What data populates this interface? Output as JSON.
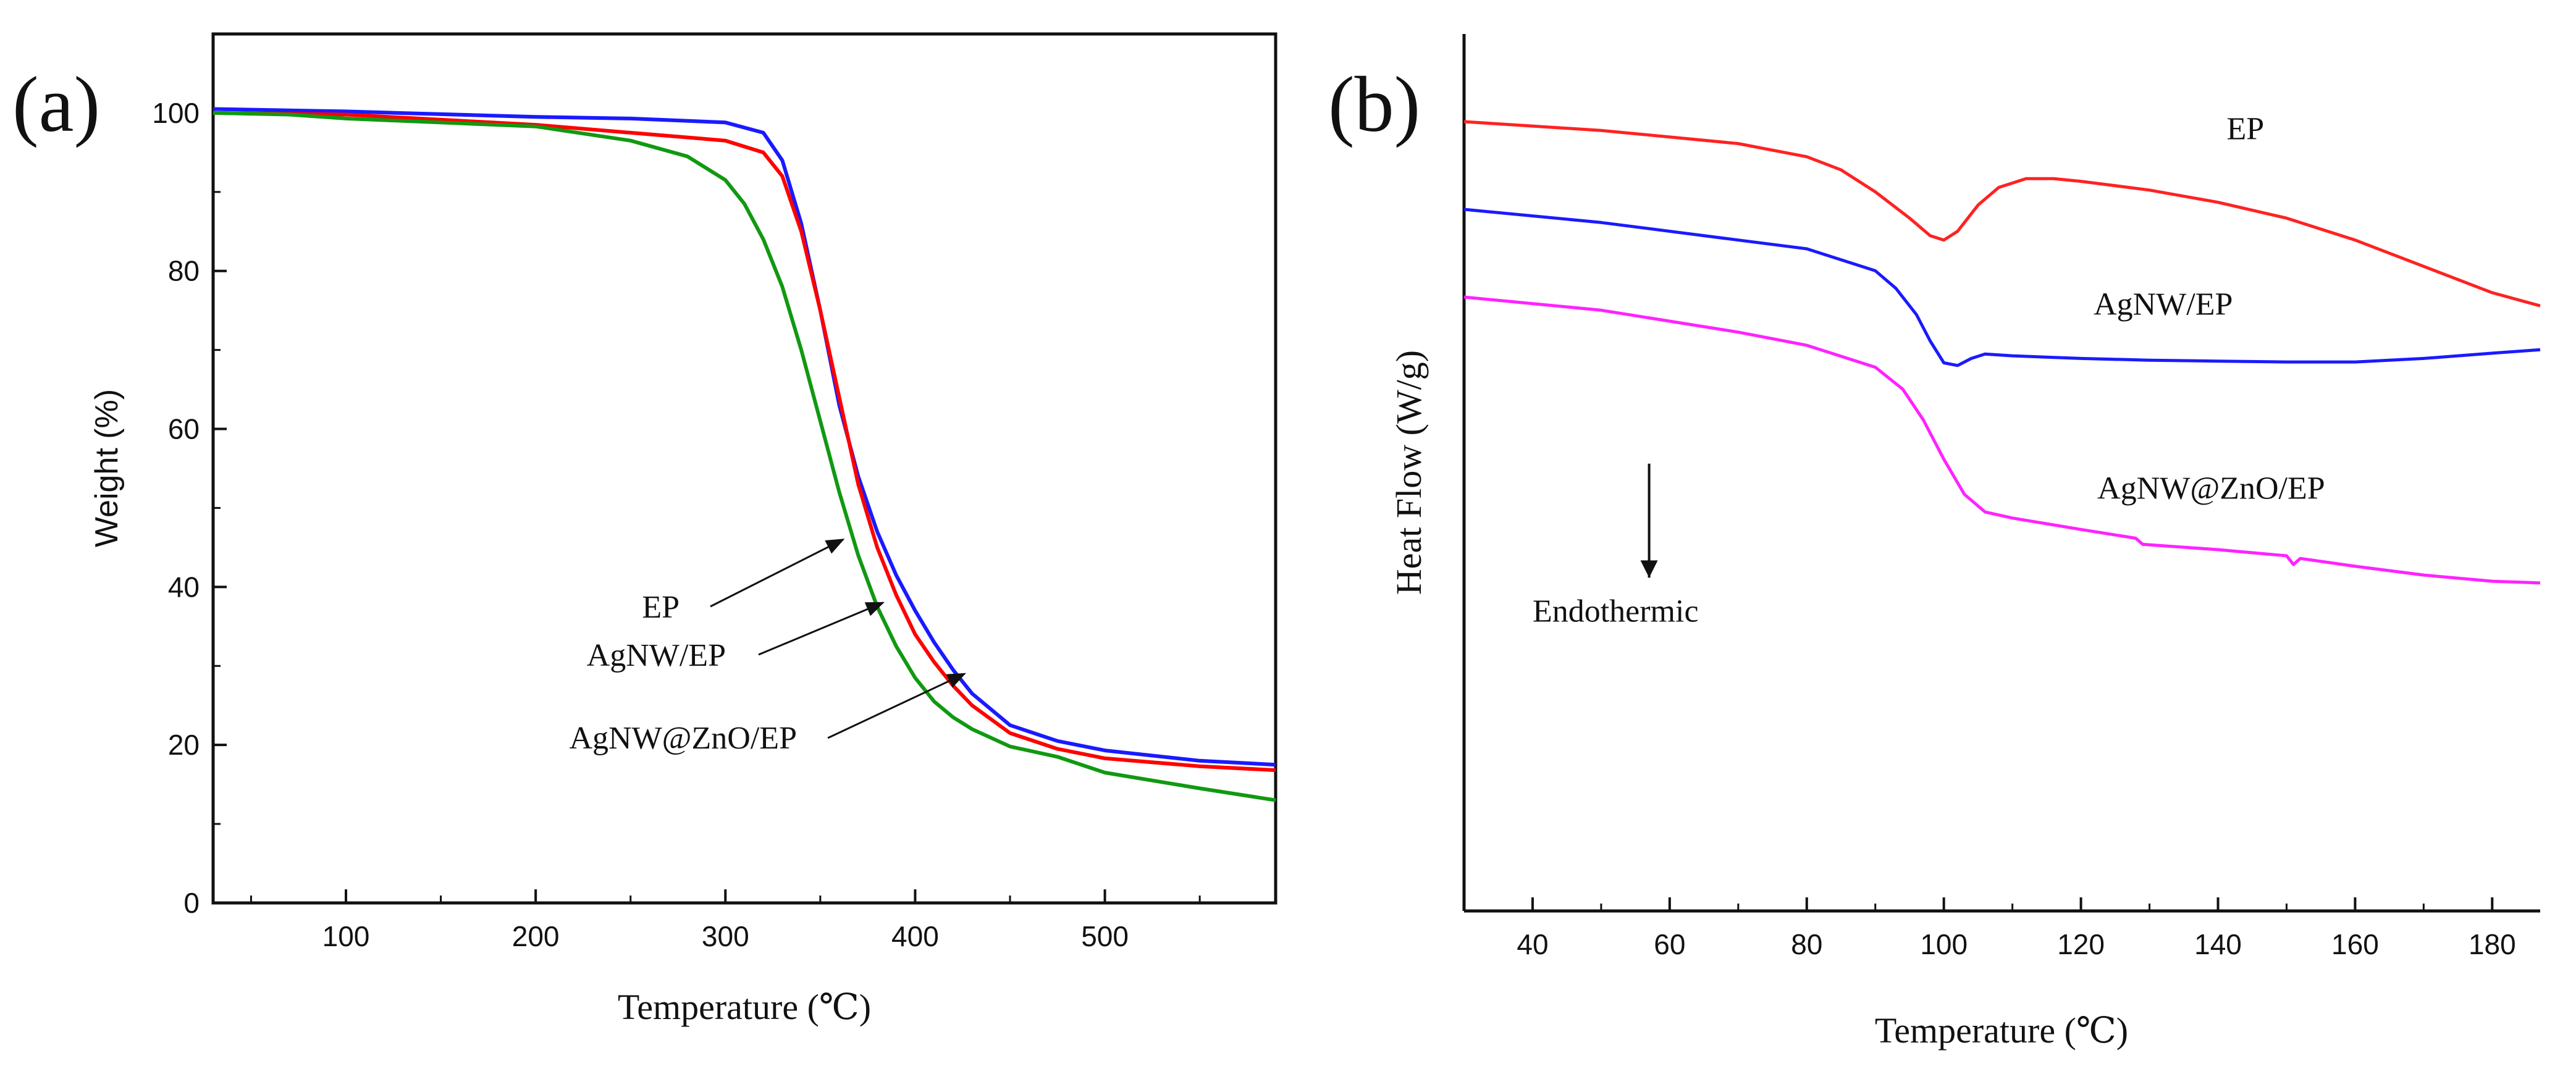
{
  "chart_data": [
    {
      "type": "line",
      "panel_label": "(a)",
      "title": "",
      "xlabel": "Temperature (℃)",
      "ylabel": "Weight (%)",
      "xlim": [
        30,
        590
      ],
      "ylim": [
        0,
        110
      ],
      "xticks": [
        100,
        200,
        300,
        400,
        500
      ],
      "yticks": [
        0,
        20,
        40,
        60,
        80,
        100
      ],
      "grid": false,
      "series": [
        {
          "name": "AgNW@ZnO/EP",
          "color": "#1a1aff",
          "x": [
            30,
            100,
            200,
            250,
            300,
            320,
            330,
            340,
            350,
            360,
            370,
            380,
            390,
            400,
            410,
            420,
            430,
            450,
            475,
            500,
            550,
            590
          ],
          "y": [
            100.5,
            100.2,
            99.5,
            99.3,
            98.8,
            97.5,
            94,
            86,
            75,
            63,
            54,
            47,
            41.5,
            37,
            33,
            29.5,
            26.5,
            22.5,
            20.5,
            19.3,
            18,
            17.5
          ]
        },
        {
          "name": "AgNW/EP",
          "color": "#ff0000",
          "x": [
            30,
            100,
            200,
            250,
            300,
            320,
            330,
            340,
            350,
            360,
            370,
            380,
            390,
            400,
            410,
            420,
            430,
            450,
            475,
            500,
            550,
            590
          ],
          "y": [
            100,
            99.8,
            98.5,
            97.5,
            96.5,
            95,
            92,
            85,
            75,
            64,
            53,
            45,
            39,
            34,
            30.5,
            27.5,
            25,
            21.5,
            19.5,
            18.3,
            17.3,
            16.8
          ]
        },
        {
          "name": "EP",
          "color": "#119911",
          "x": [
            30,
            70,
            100,
            200,
            250,
            280,
            300,
            310,
            320,
            330,
            340,
            350,
            360,
            370,
            380,
            390,
            400,
            410,
            420,
            430,
            450,
            475,
            500,
            550,
            590
          ],
          "y": [
            100,
            99.8,
            99.3,
            98.3,
            96.5,
            94.5,
            91.5,
            88.5,
            84,
            78,
            70,
            61,
            52,
            44,
            37.5,
            32.5,
            28.5,
            25.5,
            23.5,
            22,
            19.8,
            18.5,
            16.5,
            14.5,
            13
          ]
        }
      ],
      "annotations": [
        {
          "text": "EP",
          "target_series": "EP",
          "target_x": 362,
          "target_y": 46
        },
        {
          "text": "AgNW/EP",
          "target_series": "AgNW/EP",
          "target_x": 383,
          "target_y": 38
        },
        {
          "text": "AgNW@ZnO/EP",
          "target_series": "AgNW@ZnO/EP",
          "target_x": 426,
          "target_y": 29
        }
      ]
    },
    {
      "type": "line",
      "panel_label": "(b)",
      "title": "",
      "xlabel": "Temperature (℃)",
      "ylabel": "Heat Flow (W/g)",
      "xlim": [
        30,
        187
      ],
      "ylim": [
        0,
        100
      ],
      "xticks": [
        40,
        60,
        80,
        100,
        120,
        140,
        160,
        180
      ],
      "yticks": [],
      "grid": false,
      "note": "y axis unlabeled; relative heat-flow values",
      "series": [
        {
          "name": "EP",
          "color": "#ff2222",
          "x": [
            30,
            50,
            70,
            80,
            85,
            90,
            95,
            98,
            100,
            102,
            105,
            108,
            112,
            116,
            120,
            130,
            140,
            150,
            160,
            170,
            180,
            187
          ],
          "y": [
            90,
            89,
            87.5,
            86,
            84.5,
            82,
            79,
            77,
            76.5,
            77.5,
            80.5,
            82.5,
            83.5,
            83.5,
            83.2,
            82.2,
            80.8,
            79,
            76.5,
            73.5,
            70.5,
            69
          ]
        },
        {
          "name": "AgNW/EP",
          "color": "#1a1aff",
          "x": [
            30,
            50,
            70,
            80,
            90,
            93,
            96,
            98,
            100,
            102,
            104,
            106,
            110,
            120,
            130,
            140,
            150,
            160,
            170,
            180,
            187
          ],
          "y": [
            80,
            78.5,
            76.5,
            75.5,
            73,
            71,
            68,
            65,
            62.5,
            62.2,
            63,
            63.5,
            63.3,
            63,
            62.8,
            62.7,
            62.6,
            62.6,
            63,
            63.6,
            64
          ]
        },
        {
          "name": "AgNW@ZnO/EP",
          "color": "#ff22ff",
          "x": [
            30,
            50,
            70,
            80,
            90,
            94,
            97,
            100,
            103,
            106,
            110,
            120,
            128,
            129,
            140,
            150,
            151,
            152,
            160,
            170,
            180,
            187
          ],
          "y": [
            70,
            68.5,
            66,
            64.5,
            62,
            59.5,
            56,
            51.5,
            47.5,
            45.5,
            44.8,
            43.5,
            42.5,
            41.8,
            41.2,
            40.5,
            39.5,
            40.2,
            39.3,
            38.3,
            37.6,
            37.4
          ]
        }
      ],
      "series_labels": [
        {
          "text": "EP",
          "target_series": "EP",
          "x": 144,
          "y": 88
        },
        {
          "text": "AgNW/EP",
          "target_series": "AgNW/EP",
          "x": 132,
          "y": 68
        },
        {
          "text": "AgNW@ZnO/EP",
          "target_series": "AgNW@ZnO/EP",
          "x": 139,
          "y": 47
        }
      ],
      "endothermic": {
        "text": "Endothermic",
        "arrow_x": 57,
        "arrow_from": 51,
        "arrow_to": 38,
        "text_x": 40,
        "text_y": 33
      }
    }
  ]
}
